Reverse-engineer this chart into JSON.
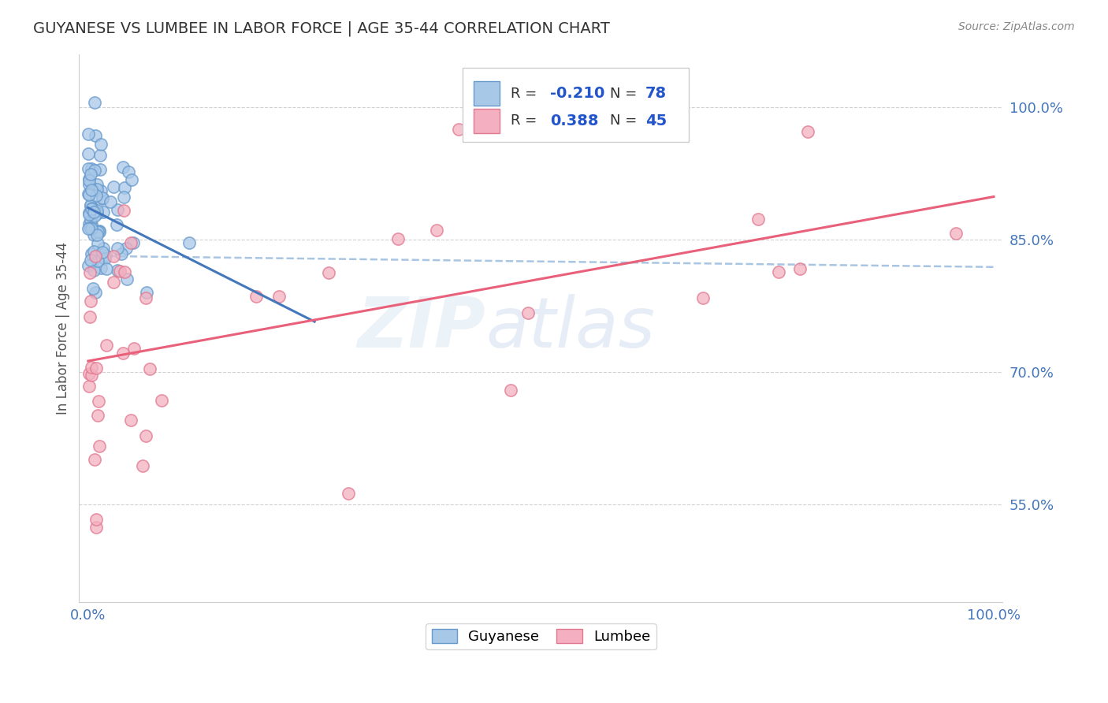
{
  "title": "GUYANESE VS LUMBEE IN LABOR FORCE | AGE 35-44 CORRELATION CHART",
  "source": "Source: ZipAtlas.com",
  "ylabel": "In Labor Force | Age 35-44",
  "xlim": [
    -0.01,
    1.01
  ],
  "ylim": [
    0.44,
    1.06
  ],
  "yticks": [
    0.55,
    0.7,
    0.85,
    1.0
  ],
  "ytick_labels": [
    "55.0%",
    "70.0%",
    "85.0%",
    "100.0%"
  ],
  "xticks": [
    0.0,
    1.0
  ],
  "xtick_labels": [
    "0.0%",
    "100.0%"
  ],
  "guyanese_R": -0.21,
  "guyanese_N": 78,
  "lumbee_R": 0.388,
  "lumbee_N": 45,
  "guyanese_color": "#a8c8e8",
  "guyanese_edge": "#6699cc",
  "lumbee_color": "#f4b0c0",
  "lumbee_edge": "#e07890",
  "guyanese_line_color": "#4477bb",
  "lumbee_line_color": "#e8607a",
  "dash_line_color": "#99bbdd",
  "background_color": "#ffffff",
  "title_color": "#333333",
  "source_color": "#888888",
  "tick_color": "#4477bb",
  "ylabel_color": "#555555",
  "grid_color": "#cccccc",
  "legend_border_color": "#cccccc",
  "watermark_zip_color": "#dce8f4",
  "watermark_atlas_color": "#c8d8ec"
}
